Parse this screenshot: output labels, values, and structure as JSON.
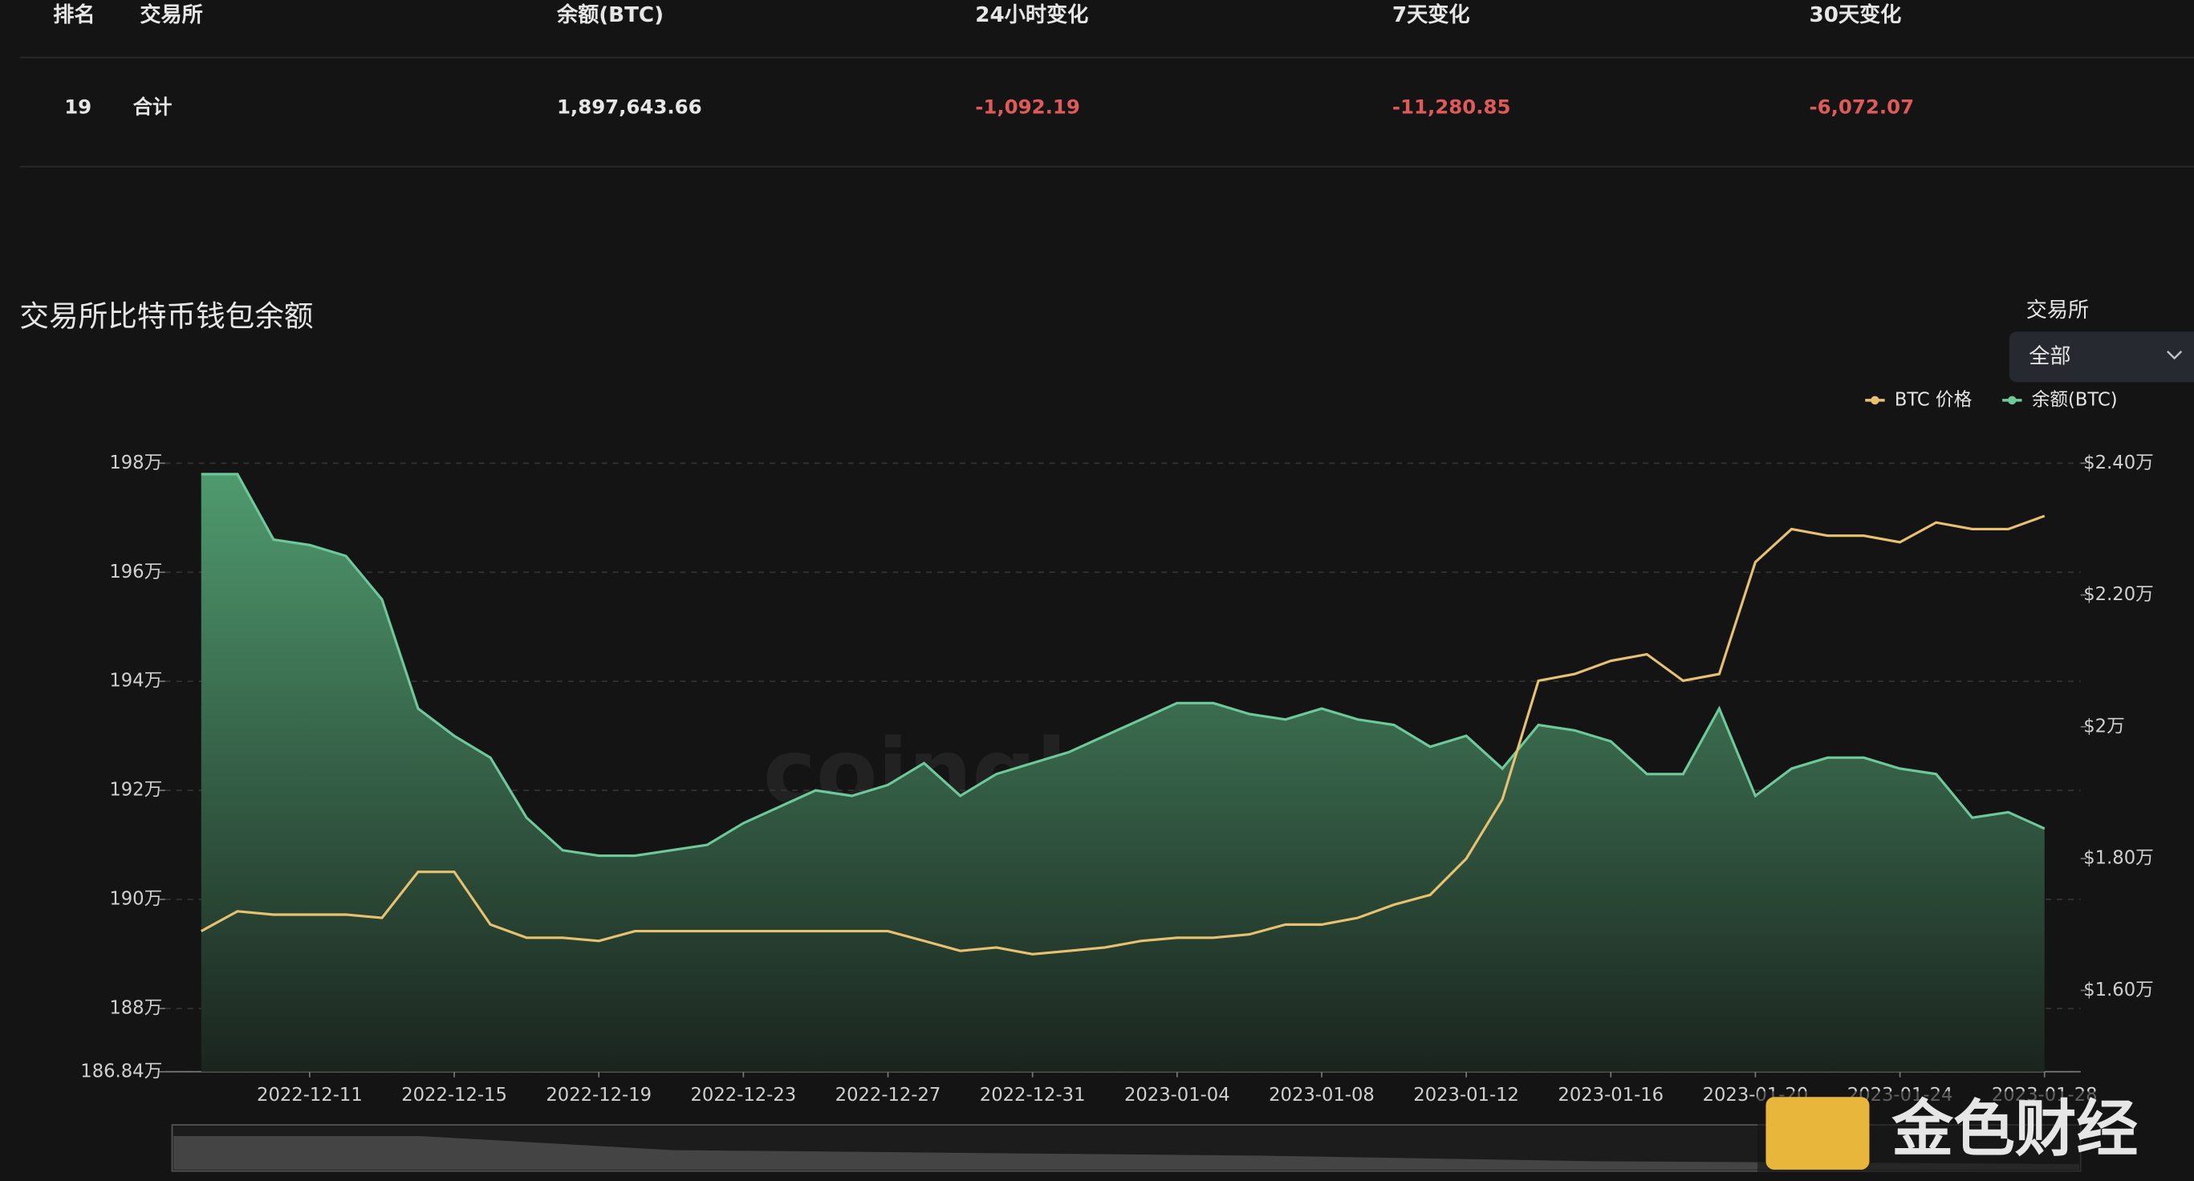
{
  "table": {
    "headers": [
      "排名",
      "交易所",
      "余额(BTC)",
      "24小时变化",
      "7天变化",
      "30天变化"
    ],
    "rows": [
      [
        "19",
        "合计",
        "1,897,643.66",
        "-1,092.19",
        "-11,280.85",
        "-6,072.07"
      ]
    ]
  },
  "filter": {
    "label": "交易所",
    "value": "全部"
  },
  "watermark": "coinglass.com",
  "logo": "金色财经",
  "chart_data": {
    "type": "line",
    "title": "交易所比特币钱包余额",
    "x": [
      "2022-12-08",
      "2022-12-09",
      "2022-12-10",
      "2022-12-11",
      "2022-12-12",
      "2022-12-13",
      "2022-12-14",
      "2022-12-15",
      "2022-12-16",
      "2022-12-17",
      "2022-12-18",
      "2022-12-19",
      "2022-12-20",
      "2022-12-21",
      "2022-12-22",
      "2022-12-23",
      "2022-12-24",
      "2022-12-25",
      "2022-12-26",
      "2022-12-27",
      "2022-12-28",
      "2022-12-29",
      "2022-12-30",
      "2022-12-31",
      "2023-01-01",
      "2023-01-02",
      "2023-01-03",
      "2023-01-04",
      "2023-01-05",
      "2023-01-06",
      "2023-01-07",
      "2023-01-08",
      "2023-01-09",
      "2023-01-10",
      "2023-01-11",
      "2023-01-12",
      "2023-01-13",
      "2023-01-14",
      "2023-01-15",
      "2023-01-16",
      "2023-01-17",
      "2023-01-18",
      "2023-01-19",
      "2023-01-20",
      "2023-01-21",
      "2023-01-22",
      "2023-01-23",
      "2023-01-24",
      "2023-01-25",
      "2023-01-26",
      "2023-01-27",
      "2023-01-28"
    ],
    "series": [
      {
        "name": "BTC 价格",
        "color": "#e8c170",
        "axis": "y2",
        "values": [
          1.69,
          1.72,
          1.715,
          1.715,
          1.715,
          1.71,
          1.78,
          1.78,
          1.7,
          1.68,
          1.68,
          1.675,
          1.69,
          1.69,
          1.69,
          1.69,
          1.69,
          1.69,
          1.69,
          1.69,
          1.675,
          1.66,
          1.665,
          1.655,
          1.66,
          1.665,
          1.675,
          1.68,
          1.68,
          1.685,
          1.7,
          1.7,
          1.71,
          1.73,
          1.745,
          1.8,
          1.89,
          2.07,
          2.08,
          2.1,
          2.11,
          2.07,
          2.08,
          2.25,
          2.3,
          2.29,
          2.29,
          2.28,
          2.31,
          2.3,
          2.3,
          2.32
        ]
      },
      {
        "name": "余额(BTC)",
        "color": "#6ec99a",
        "values": [
          197.8,
          197.8,
          196.6,
          196.5,
          196.3,
          195.5,
          193.5,
          193.0,
          192.6,
          191.5,
          190.9,
          190.8,
          190.8,
          190.9,
          191.0,
          191.4,
          191.7,
          192.0,
          191.9,
          192.1,
          192.5,
          191.9,
          192.3,
          192.5,
          192.7,
          193.0,
          193.3,
          193.6,
          193.6,
          193.4,
          193.3,
          193.5,
          193.3,
          193.2,
          192.8,
          193.0,
          192.4,
          193.2,
          193.1,
          192.9,
          192.3,
          192.3,
          193.5,
          191.9,
          192.4,
          192.6,
          192.6,
          192.4,
          192.3,
          191.5,
          191.6,
          191.3
        ]
      }
    ],
    "xlim": [
      "2022-12-07",
      "2023-01-29"
    ],
    "xticks": [
      "2022-12-11",
      "2022-12-15",
      "2022-12-19",
      "2022-12-23",
      "2022-12-27",
      "2022-12-31",
      "2023-01-04",
      "2023-01-08",
      "2023-01-12",
      "2023-01-16",
      "2023-01-20",
      "2023-01-24",
      "2023-01-28"
    ],
    "ylim": [
      186.84,
      198
    ],
    "yticks": [
      {
        "value": 186.84,
        "label": "186.84万"
      },
      {
        "value": 188,
        "label": "188万"
      },
      {
        "value": 190,
        "label": "190万"
      },
      {
        "value": 192,
        "label": "192万"
      },
      {
        "value": 194,
        "label": "194万"
      },
      {
        "value": 196,
        "label": "196万"
      },
      {
        "value": 198,
        "label": "198万"
      }
    ],
    "y2lim": [
      1.4766,
      2.4
    ],
    "y2ticks": [
      {
        "value": 1.6,
        "label": "$1.60万"
      },
      {
        "value": 1.8,
        "label": "$1.80万"
      },
      {
        "value": 2,
        "label": "$2万"
      },
      {
        "value": 2.2,
        "label": "$2.20万"
      },
      {
        "value": 2.4,
        "label": "$2.40万"
      }
    ],
    "grid": true,
    "legend": "top-right"
  }
}
